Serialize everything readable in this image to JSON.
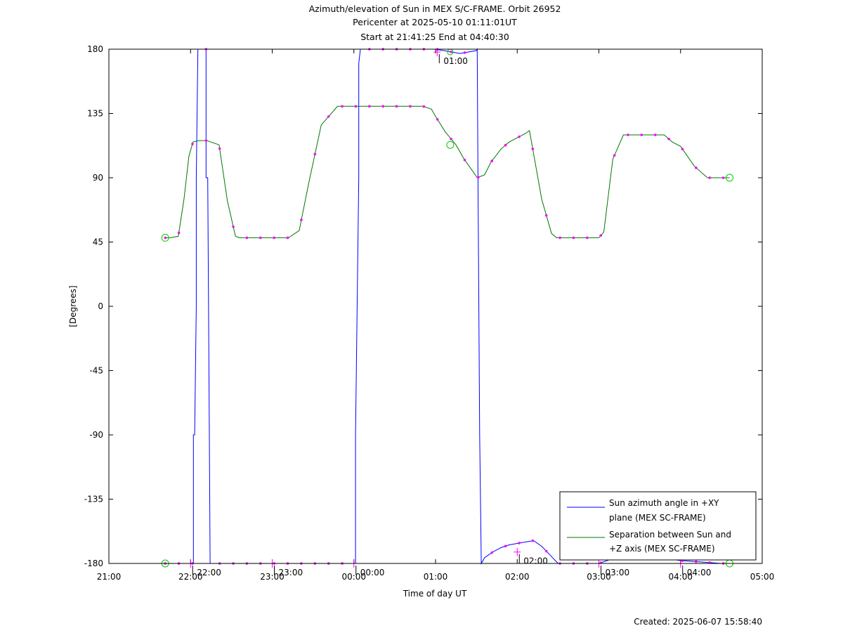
{
  "chart_data": {
    "type": "line",
    "title": "Azimuth/elevation of Sun in MEX S/C-FRAME.  Orbit 26952",
    "subtitle_lines": [
      "Pericenter at 2025-05-10 01:11:01UT",
      "Start at 21:41:25 End at 04:40:30"
    ],
    "xlabel": "Time of day UT",
    "ylabel": "[Degrees]",
    "footer": "Created: 2025-06-07 15:58:40",
    "x_unit": "hours after 21:00 UT",
    "xlim": [
      0,
      8
    ],
    "ylim": [
      -180,
      180
    ],
    "x_ticks": [
      {
        "v": 0,
        "label": "21:00"
      },
      {
        "v": 1,
        "label": "22:00"
      },
      {
        "v": 2,
        "label": "23:00"
      },
      {
        "v": 3,
        "label": "00:00"
      },
      {
        "v": 4,
        "label": "01:00"
      },
      {
        "v": 5,
        "label": "02:00"
      },
      {
        "v": 6,
        "label": "03:00"
      },
      {
        "v": 7,
        "label": "04:00"
      },
      {
        "v": 8,
        "label": "05:00"
      }
    ],
    "y_ticks": [
      {
        "v": 180,
        "label": "180"
      },
      {
        "v": 135,
        "label": "135"
      },
      {
        "v": 90,
        "label": "90"
      },
      {
        "v": 45,
        "label": "45"
      },
      {
        "v": 0,
        "label": "0"
      },
      {
        "v": -45,
        "label": "-45"
      },
      {
        "v": -90,
        "label": "-90"
      },
      {
        "v": -135,
        "label": "-135"
      },
      {
        "v": -180,
        "label": "-180"
      }
    ],
    "hour_markers": [
      {
        "x": 1.0,
        "y": -180,
        "label": "22:00"
      },
      {
        "x": 2.0,
        "y": -180,
        "label": "23:00"
      },
      {
        "x": 3.0,
        "y": -180,
        "label": "00:00"
      },
      {
        "x": 4.02,
        "y": 178,
        "label": "01:00"
      },
      {
        "x": 5.0,
        "y": -172,
        "label": "02:00"
      },
      {
        "x": 6.0,
        "y": -180,
        "label": "03:00"
      },
      {
        "x": 7.0,
        "y": -180,
        "label": "04:00"
      }
    ],
    "series": [
      {
        "name": "Sun azimuth angle in +XY plane (MEX SC-FRAME)",
        "legend_lines": [
          "Sun azimuth angle in +XY",
          "plane (MEX SC-FRAME)"
        ],
        "color": "#0000ff",
        "x": [
          0.69,
          1.03,
          1.035,
          1.035,
          1.05,
          1.07,
          1.07,
          1.09,
          1.19,
          1.19,
          1.21,
          1.23,
          1.23,
          1.24,
          1.5,
          2.0,
          2.5,
          2.95,
          3.02,
          3.02,
          3.04,
          3.06,
          3.06,
          3.08,
          3.5,
          4.0,
          4.1,
          4.2,
          4.3,
          4.5,
          4.51,
          4.52,
          4.52,
          4.53,
          4.54,
          4.54,
          4.56,
          4.6,
          4.7,
          4.8,
          4.9,
          5.0,
          5.1,
          5.2,
          5.3,
          5.4,
          5.5,
          6.0,
          6.2,
          6.5,
          7.0,
          7.5,
          7.6
        ],
        "y": [
          -180,
          -180,
          -180,
          -90,
          -90,
          0,
          90,
          180,
          180,
          90,
          90,
          -90,
          -90,
          -180,
          -180,
          -180,
          -180,
          -180,
          -180,
          -90,
          0,
          90,
          170,
          180,
          180,
          180,
          179,
          178,
          177,
          179,
          180,
          90,
          90,
          0,
          -90,
          -90,
          -180,
          -176,
          -172,
          -169,
          -167,
          -166,
          -165,
          -164,
          -168,
          -174,
          -180,
          -180,
          -176,
          -174,
          -178,
          -180,
          -180
        ]
      },
      {
        "name": "Separation between Sun and +Z axis (MEX SC-FRAME)",
        "legend_lines": [
          "Separation between Sun and",
          "+Z axis (MEX SC-FRAME)"
        ],
        "color": "#007700",
        "x": [
          0.69,
          0.75,
          0.85,
          0.92,
          0.98,
          1.03,
          1.1,
          1.2,
          1.35,
          1.45,
          1.55,
          1.6,
          1.7,
          1.8,
          2.0,
          2.2,
          2.33,
          2.45,
          2.6,
          2.8,
          2.95,
          3.0,
          3.2,
          3.5,
          3.85,
          3.95,
          4.0,
          4.12,
          4.25,
          4.35,
          4.45,
          4.51,
          4.6,
          4.68,
          4.8,
          4.9,
          5.0,
          5.1,
          5.15,
          5.3,
          5.42,
          5.48,
          5.6,
          5.75,
          5.9,
          6.0,
          6.06,
          6.17,
          6.3,
          6.5,
          6.7,
          6.8,
          6.9,
          7.0,
          7.17,
          7.33,
          7.5,
          7.6
        ],
        "y": [
          48,
          48,
          49,
          75,
          105,
          115,
          116,
          116,
          113,
          74,
          49,
          48,
          48,
          48,
          48,
          48,
          53,
          87,
          127,
          140,
          140,
          140,
          140,
          140,
          140,
          138,
          133,
          122,
          113,
          103,
          95,
          90,
          92,
          101,
          110,
          115,
          118,
          121,
          123,
          75,
          51,
          48,
          48,
          48,
          48,
          48,
          52,
          103,
          120,
          120,
          120,
          120,
          115,
          112,
          98,
          90,
          90,
          90
        ]
      }
    ],
    "legend": {
      "placement": "bottom-right"
    }
  }
}
